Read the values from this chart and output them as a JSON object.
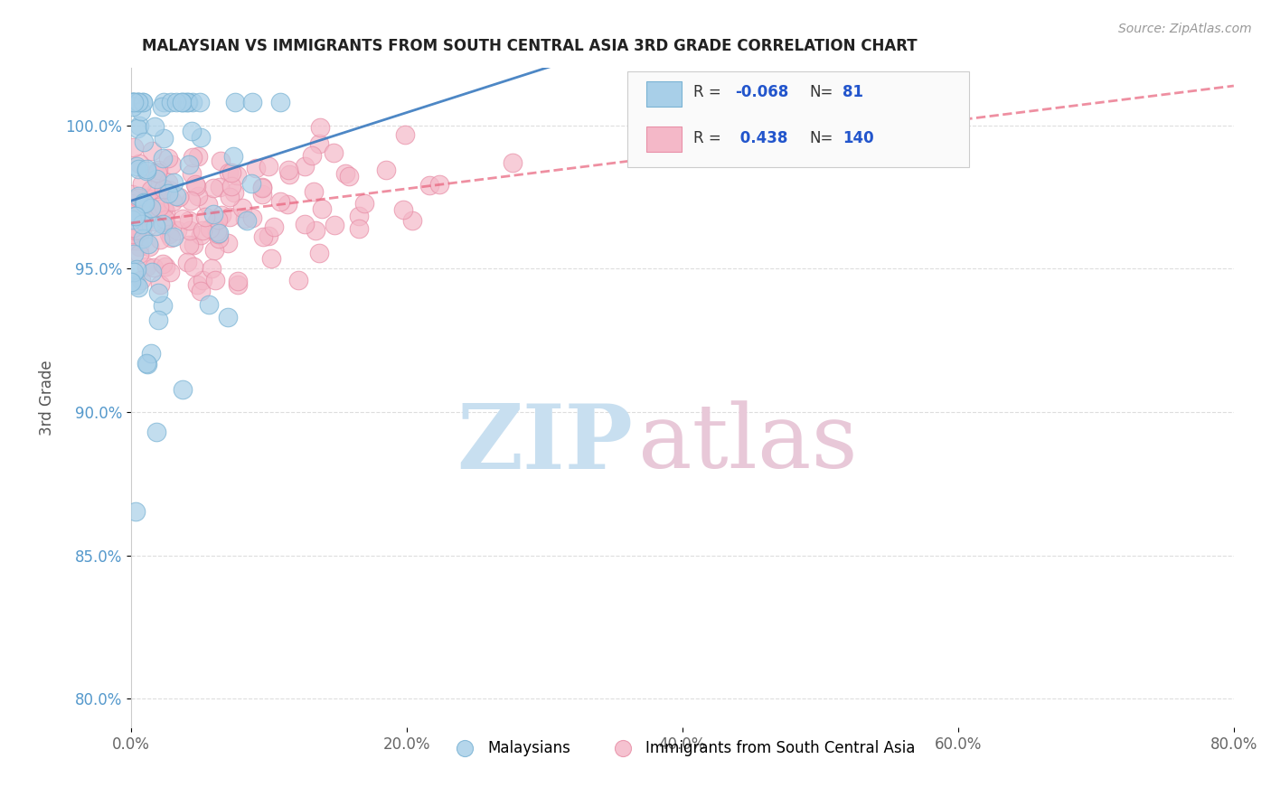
{
  "title": "MALAYSIAN VS IMMIGRANTS FROM SOUTH CENTRAL ASIA 3RD GRADE CORRELATION CHART",
  "source": "Source: ZipAtlas.com",
  "xlabel_vals": [
    0.0,
    20.0,
    40.0,
    60.0,
    80.0
  ],
  "ylabel_vals": [
    80.0,
    85.0,
    90.0,
    95.0,
    100.0
  ],
  "xlim": [
    0.0,
    80.0
  ],
  "ylim": [
    79.0,
    102.0
  ],
  "ylabel": "3rd Grade",
  "legend_blue_label": "Malaysians",
  "legend_pink_label": "Immigrants from South Central Asia",
  "r_blue": -0.068,
  "n_blue": 81,
  "r_pink": 0.438,
  "n_pink": 140,
  "blue_color": "#a8cfe8",
  "blue_edge_color": "#7ab3d4",
  "pink_color": "#f4b8c8",
  "pink_edge_color": "#e890a8",
  "blue_line_color": "#3a7abf",
  "pink_line_color": "#e8607a",
  "r_value_color": "#2255cc",
  "n_value_color": "#2255cc",
  "r_label_color": "#333333",
  "watermark_zip": "#c8dff0",
  "watermark_atlas": "#e8c8d8",
  "background_color": "#ffffff",
  "ylabel_color": "#5599cc",
  "seed": 42
}
